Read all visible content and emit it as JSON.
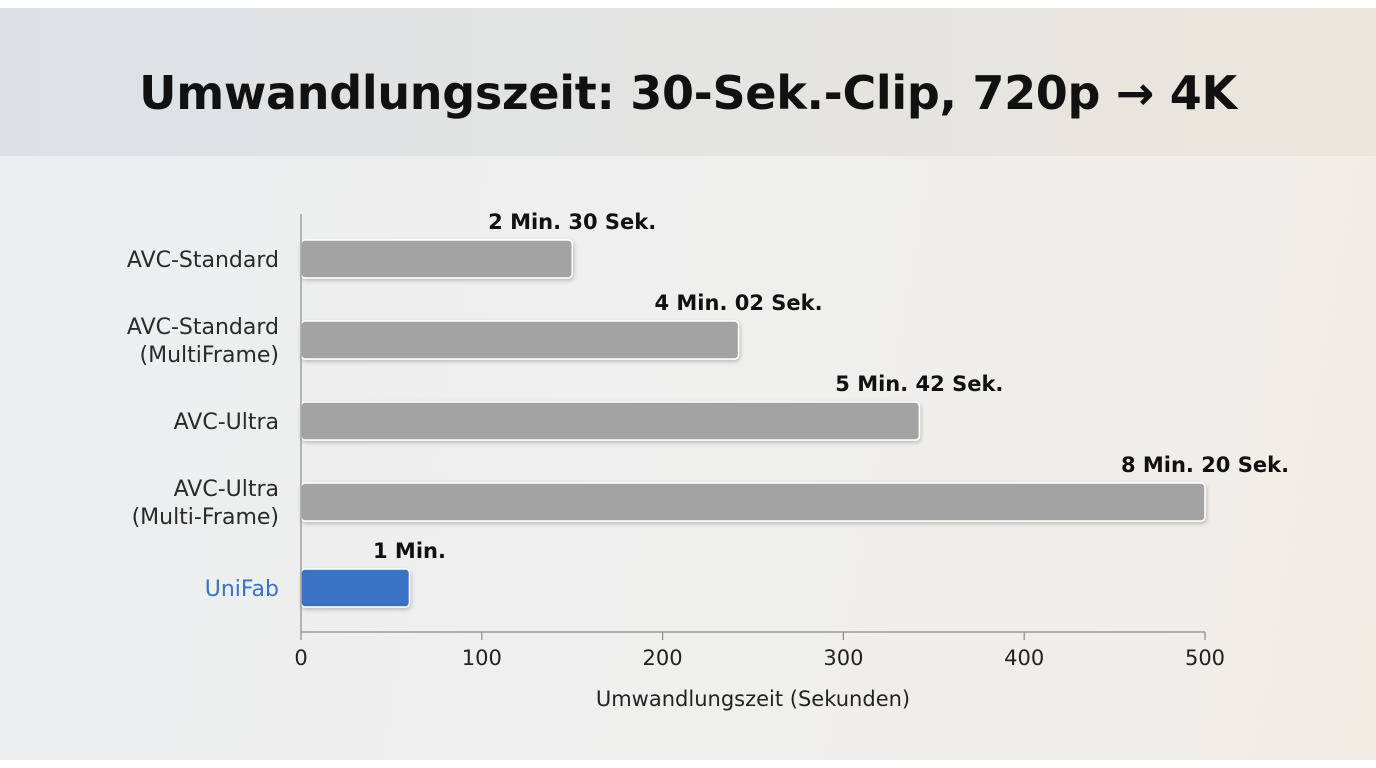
{
  "chart_data": {
    "type": "bar",
    "orientation": "horizontal",
    "title": "Umwandlungszeit: 30-Sek.-Clip, 720p → 4K",
    "xlabel": "Umwandlungszeit (Sekunden)",
    "ylabel": "",
    "xlim": [
      0,
      500
    ],
    "xticks": [
      "0",
      "100",
      "200",
      "300",
      "400",
      "500"
    ],
    "grid": false,
    "categories": [
      [
        "AVC-Standard"
      ],
      [
        "AVC-Standard",
        "(MultiFrame)"
      ],
      [
        "AVC-Ultra"
      ],
      [
        "AVC-Ultra",
        "(Multi-Frame)"
      ],
      [
        "UniFab"
      ]
    ],
    "values": [
      150,
      242,
      342,
      500,
      60
    ],
    "value_labels": [
      "2 Min. 30 Sek.",
      "4 Min. 02 Sek.",
      "5 Min. 42 Sek.",
      "8 Min. 20 Sek.",
      "1 Min."
    ],
    "colors": [
      "#a3a3a3",
      "#a3a3a3",
      "#a3a3a3",
      "#a3a3a3",
      "#3b73c4"
    ],
    "highlight_index": 4,
    "highlight_color": "#3b73c4"
  }
}
